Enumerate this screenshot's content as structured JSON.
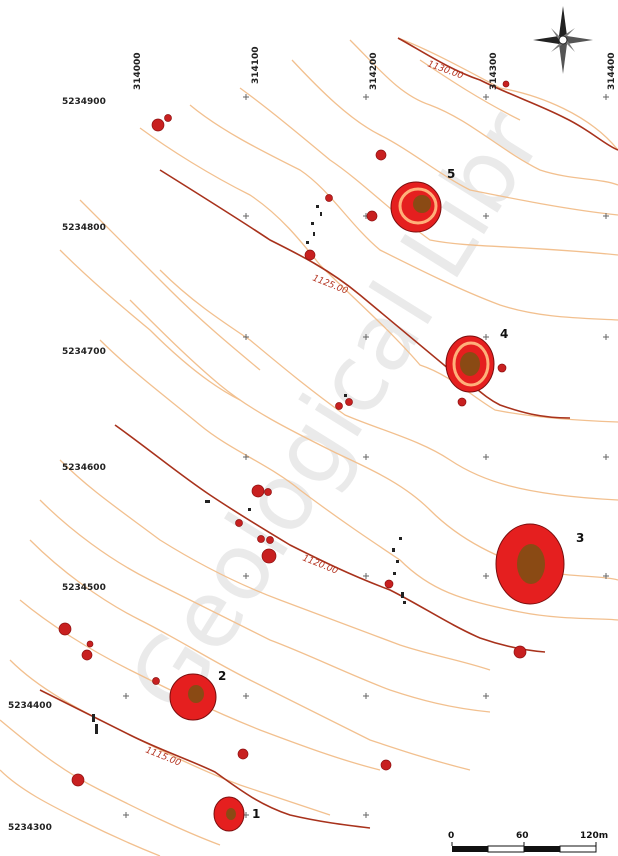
{
  "watermark": "Geological Libr",
  "easting_labels": [
    "314000",
    "314100",
    "314200",
    "314300",
    "314400"
  ],
  "northing_labels": [
    "5234900",
    "5234800",
    "5234700",
    "5234600",
    "5234500",
    "5234400",
    "5234300"
  ],
  "contour_labels": [
    "1130.00",
    "1125.00",
    "1120.00",
    "1115.00"
  ],
  "mounds": [
    {
      "label": "5"
    },
    {
      "label": "4"
    },
    {
      "label": "3"
    },
    {
      "label": "2"
    },
    {
      "label": "1"
    }
  ],
  "scale_bar": {
    "ticks": [
      "0",
      "60",
      "120m"
    ]
  },
  "colors": {
    "contour": "#f2c08f",
    "index_contour": "#a8321c",
    "mound_outer": "#e51f1f",
    "mound_ring": "#ff8a5c",
    "mound_core": "#8a4a14",
    "dot": "#c82020"
  },
  "north_arrow": "compass-rose-icon"
}
